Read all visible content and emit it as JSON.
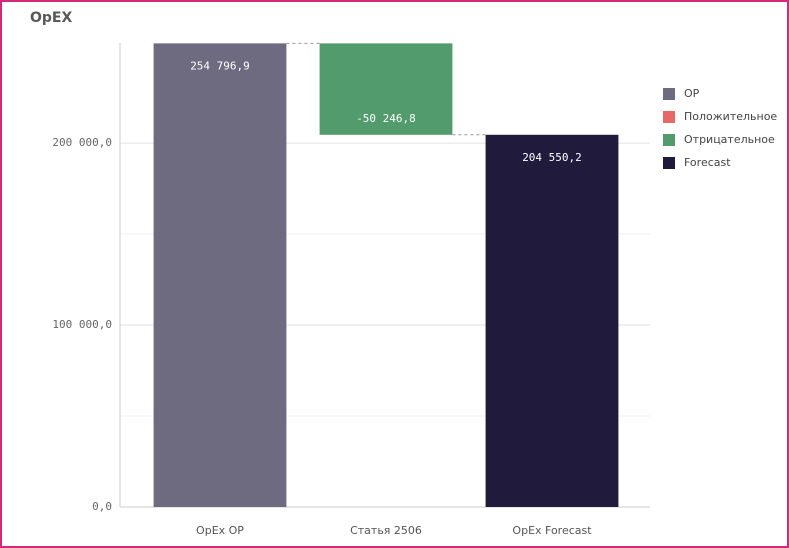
{
  "chart_data": {
    "type": "waterfall",
    "title": "OpEX",
    "categories": [
      "OpEx OP",
      "Статья 2506",
      "OpEx Forecast"
    ],
    "values": [
      254796.9,
      -50246.8,
      204550.2
    ],
    "value_labels": [
      "254 796,9",
      "-50 246,8",
      "204 550,2"
    ],
    "measure": [
      "absolute",
      "relative",
      "total"
    ],
    "colors": [
      "#6e6a80",
      "#529b6d",
      "#201a3c"
    ],
    "ylim": [
      0,
      255000
    ],
    "yticks": [
      {
        "value": 0,
        "label": "0,0"
      },
      {
        "value": 100000,
        "label": "100 000,0"
      },
      {
        "value": 200000,
        "label": "200 000,0"
      }
    ],
    "minor_grid_yticks": [
      50000,
      150000
    ],
    "grid": true,
    "legend": [
      {
        "name": "OP",
        "color": "#6e6a80"
      },
      {
        "name": "Положительное",
        "color": "#e8686a"
      },
      {
        "name": "Отрицательное",
        "color": "#529b6d"
      },
      {
        "name": "Forecast",
        "color": "#201a3c"
      }
    ],
    "legend_position": "right"
  }
}
